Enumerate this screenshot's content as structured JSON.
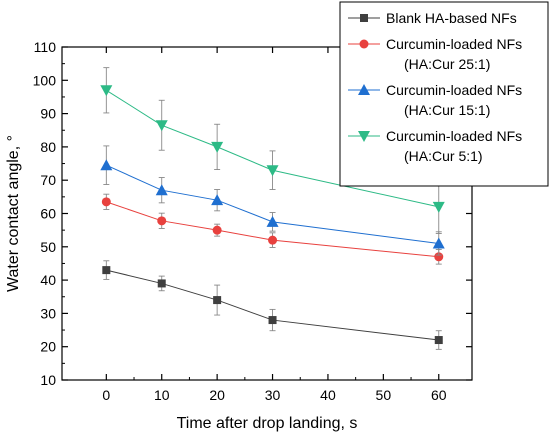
{
  "chart_data": {
    "type": "line",
    "title": "",
    "xlabel": "Time after drop landing, s",
    "ylabel": "Water contact angle, °",
    "xlim": [
      -8,
      66
    ],
    "ylim": [
      10,
      110
    ],
    "xticks": [
      0,
      10,
      20,
      30,
      40,
      50,
      60
    ],
    "yticks": [
      10,
      20,
      30,
      40,
      50,
      60,
      70,
      80,
      90,
      100,
      110
    ],
    "grid": false,
    "legend_position": "top-right",
    "series": [
      {
        "name": "Blank HA-based NFs",
        "name_lines": [
          "Blank HA-based NFs"
        ],
        "marker": "square",
        "color": "#3f3f3f",
        "x": [
          0,
          10,
          20,
          30,
          60
        ],
        "y": [
          43,
          39,
          34,
          28,
          22
        ],
        "yerr": [
          2.8,
          2.2,
          4.5,
          3.2,
          2.8
        ]
      },
      {
        "name": "Curcumin-loaded NFs (HA:Cur 25:1)",
        "name_lines": [
          "Curcumin-loaded NFs",
          "(HA:Cur 25:1)"
        ],
        "marker": "circle",
        "color": "#e8413e",
        "x": [
          0,
          10,
          20,
          30,
          60
        ],
        "y": [
          63.5,
          57.8,
          55,
          52,
          47
        ],
        "yerr": [
          2.3,
          2.3,
          1.8,
          2.2,
          2.2
        ]
      },
      {
        "name": "Curcumin-loaded NFs (HA:Cur 15:1)",
        "name_lines": [
          "Curcumin-loaded NFs",
          "(HA:Cur 15:1)"
        ],
        "marker": "triangle-up",
        "color": "#1f6fd0",
        "x": [
          0,
          10,
          20,
          30,
          60
        ],
        "y": [
          74.5,
          67,
          64,
          57.5,
          51
        ],
        "yerr": [
          5.8,
          3.8,
          3.2,
          2.8,
          3.5
        ]
      },
      {
        "name": "Curcumin-loaded NFs (HA:Cur 5:1)",
        "name_lines": [
          "Curcumin-loaded NFs",
          "(HA:Cur 5:1)"
        ],
        "marker": "triangle-down",
        "color": "#2dba86",
        "x": [
          0,
          10,
          20,
          30,
          60
        ],
        "y": [
          97,
          86.5,
          80,
          73,
          62
        ],
        "yerr": [
          6.8,
          7.5,
          6.8,
          5.8,
          8
        ]
      }
    ]
  }
}
